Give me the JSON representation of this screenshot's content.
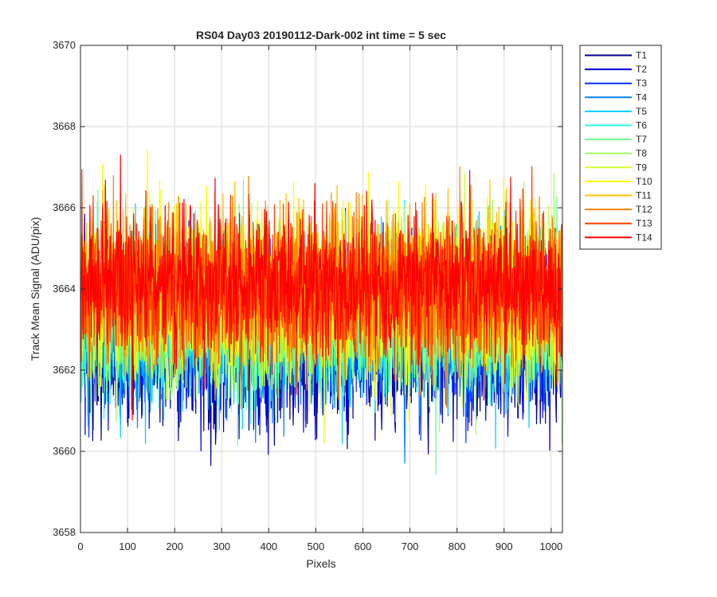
{
  "chart_data": {
    "type": "line",
    "title": "RS04 Day03 20190112-Dark-002 int time = 5 sec",
    "xlabel": "Pixels",
    "ylabel": "Track Mean Signal (ADU/pix)",
    "xlim": [
      0,
      1024
    ],
    "ylim": [
      3658,
      3670
    ],
    "xticks": [
      0,
      100,
      200,
      300,
      400,
      500,
      600,
      700,
      800,
      900,
      1000
    ],
    "yticks": [
      3658,
      3660,
      3662,
      3664,
      3666,
      3668,
      3670
    ],
    "grid": true,
    "legend_position": "outside-top-right",
    "n_points": 1024,
    "series": [
      {
        "name": "T1",
        "color": "#00008F",
        "mean": 3662.6,
        "spread": 0.95
      },
      {
        "name": "T2",
        "color": "#0000DF",
        "mean": 3662.7,
        "spread": 0.95
      },
      {
        "name": "T3",
        "color": "#0030FF",
        "mean": 3662.9,
        "spread": 0.95
      },
      {
        "name": "T4",
        "color": "#0080FF",
        "mean": 3663.1,
        "spread": 0.95
      },
      {
        "name": "T5",
        "color": "#00CFFF",
        "mean": 3663.2,
        "spread": 0.95
      },
      {
        "name": "T6",
        "color": "#20FFDF",
        "mean": 3663.3,
        "spread": 0.95
      },
      {
        "name": "T7",
        "color": "#70FF8F",
        "mean": 3663.4,
        "spread": 0.95
      },
      {
        "name": "T8",
        "color": "#9FFF60",
        "mean": 3663.5,
        "spread": 0.95
      },
      {
        "name": "T9",
        "color": "#CFFF30",
        "mean": 3663.6,
        "spread": 0.95
      },
      {
        "name": "T10",
        "color": "#FFFF00",
        "mean": 3664.0,
        "spread": 1.0
      },
      {
        "name": "T11",
        "color": "#FFBF00",
        "mean": 3664.0,
        "spread": 0.95
      },
      {
        "name": "T12",
        "color": "#FF8000",
        "mean": 3663.9,
        "spread": 0.95
      },
      {
        "name": "T13",
        "color": "#FF4000",
        "mean": 3664.0,
        "spread": 0.95
      },
      {
        "name": "T14",
        "color": "#FF0000",
        "mean": 3664.1,
        "spread": 0.9
      }
    ]
  }
}
